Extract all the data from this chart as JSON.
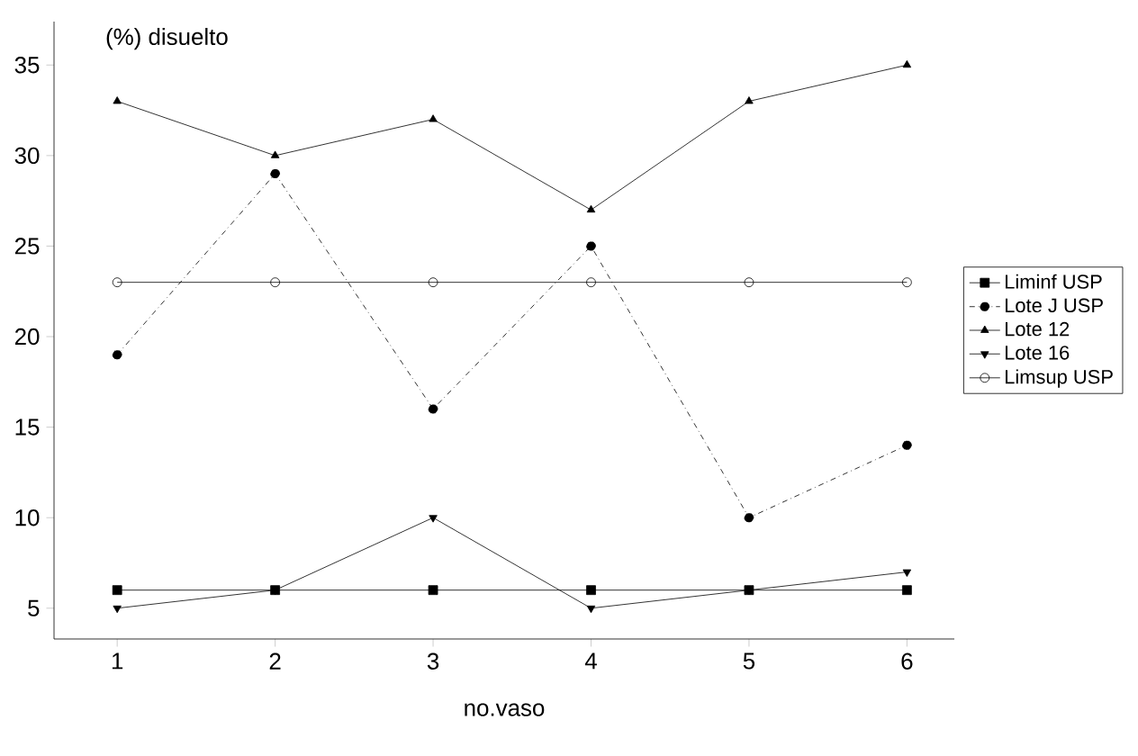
{
  "chart_data": {
    "type": "line",
    "ylabel": "(%) disuelto",
    "xlabel": "no.vaso",
    "x": [
      1,
      2,
      3,
      4,
      5,
      6
    ],
    "series": [
      {
        "name": "Liminf USP",
        "color": "#000000",
        "marker": "square",
        "line_style": "solid",
        "values": [
          6,
          6,
          6,
          6,
          6,
          6
        ]
      },
      {
        "name": "Lote J USP",
        "color": "#000000",
        "marker": "circle",
        "line_style": "dashdot",
        "values": [
          19,
          29,
          16,
          25,
          10,
          14
        ]
      },
      {
        "name": "Lote 12",
        "color": "#000000",
        "marker": "triangle",
        "line_style": "solid",
        "values": [
          33,
          30,
          32,
          27,
          33,
          35
        ]
      },
      {
        "name": "Lote 16",
        "color": "#000000",
        "marker": "triangle down",
        "line_style": "solid",
        "values": [
          5,
          6,
          10,
          5,
          6,
          7
        ]
      },
      {
        "name": "Limsup USP",
        "color": "#000000",
        "marker": "open circle",
        "line_style": "solid",
        "values": [
          23,
          23,
          23,
          23,
          23,
          23
        ]
      }
    ],
    "xlim": [
      0.6,
      6.3
    ],
    "ylim": [
      3.3,
      37.4
    ],
    "xticks": [
      1,
      2,
      3,
      4,
      5,
      6
    ],
    "yticks": [
      5,
      10,
      15,
      20,
      25,
      30,
      35
    ],
    "legend": "right",
    "grid": false
  }
}
